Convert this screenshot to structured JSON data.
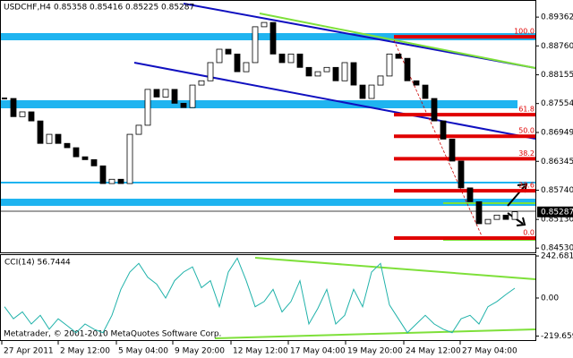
{
  "chart_data": [
    {
      "type": "candlestick",
      "title": "USDCHF,H4",
      "header_values": [
        0.85358,
        0.85416,
        0.85225,
        0.85287
      ],
      "last_price": 0.85287,
      "up_color": "#ffffff",
      "down_color": "#000000",
      "closes": [
        0.8766,
        0.8728,
        0.8738,
        0.8719,
        0.8672,
        0.8691,
        0.8672,
        0.8663,
        0.8644,
        0.8638,
        0.8625,
        0.8588,
        0.8597,
        0.8588,
        0.8691,
        0.871,
        0.8785,
        0.8769,
        0.8785,
        0.8756,
        0.8747,
        0.8794,
        0.8803,
        0.8841,
        0.8869,
        0.8859,
        0.8822,
        0.8841,
        0.8916,
        0.8925,
        0.8859,
        0.8841,
        0.8859,
        0.8831,
        0.8813,
        0.8822,
        0.8831,
        0.8803,
        0.8841,
        0.8794,
        0.8766,
        0.8794,
        0.8813,
        0.8859,
        0.885,
        0.8803,
        0.8794,
        0.8766,
        0.8719,
        0.8681,
        0.8635,
        0.8579,
        0.855,
        0.8504,
        0.8513,
        0.8522,
        0.8513,
        0.8529
      ],
      "xlim": [
        -0.5,
        59.3
      ],
      "ylim": [
        0.8444,
        0.8972
      ],
      "yticks": [
        {
          "value": 0.89362,
          "label": "0.89362"
        },
        {
          "value": 0.8876,
          "label": "0.88760"
        },
        {
          "value": 0.88155,
          "label": "0.88155"
        },
        {
          "value": 0.87554,
          "label": "0.87554"
        },
        {
          "value": 0.86949,
          "label": "0.86949"
        },
        {
          "value": 0.86345,
          "label": "0.86345"
        },
        {
          "value": 0.8574,
          "label": "0.85740"
        },
        {
          "value": 0.8513,
          "label": "0.85130"
        },
        {
          "value": 0.8453,
          "label": "0.84530"
        }
      ],
      "xticks": [
        {
          "value": -0.3,
          "label": "27 Apr 2011"
        },
        {
          "value": 6,
          "label": "2 May 12:00"
        },
        {
          "value": 12.5,
          "label": "5 May 04:00"
        },
        {
          "value": 18.8,
          "label": "9 May 20:00"
        },
        {
          "value": 25.3,
          "label": "12 May 12:00"
        },
        {
          "value": 31.7,
          "label": "17 May 04:00"
        },
        {
          "value": 38.1,
          "label": "19 May 20:00"
        },
        {
          "value": 44.6,
          "label": "24 May 12:00"
        },
        {
          "value": 50.9,
          "label": "27 May 04:00"
        }
      ],
      "fib_levels": [
        {
          "value": 0.8895,
          "label": "100.0"
        },
        {
          "value": 0.8732,
          "label": "61.8"
        },
        {
          "value": 0.8687,
          "label": "50.0"
        },
        {
          "value": 0.864,
          "label": "38.2"
        },
        {
          "value": 0.8573,
          "label": "23.6"
        },
        {
          "value": 0.8474,
          "label": "0.0"
        }
      ]
    },
    {
      "type": "line",
      "title": "CCI(14) 56.7444",
      "color": "#20b2aa",
      "values": [
        -50,
        -120,
        -80,
        -150,
        -100,
        -180,
        -120,
        -160,
        -200,
        -150,
        -180,
        -200,
        -100,
        50,
        150,
        200,
        120,
        80,
        0,
        100,
        150,
        180,
        60,
        100,
        -50,
        150,
        230,
        100,
        -50,
        -20,
        50,
        -80,
        -20,
        100,
        -150,
        -60,
        50,
        -150,
        -100,
        50,
        -50,
        150,
        200,
        -40,
        -120,
        -200,
        -150,
        -100,
        -150,
        -180,
        -200,
        -120,
        -100,
        -150,
        -50,
        -20,
        20,
        57
      ],
      "ylim": [
        -243,
        248
      ],
      "yticks": [
        242.6814,
        {
          "value": 0,
          "label": "0.00"
        },
        -219.659
      ],
      "footer": "Metatrader, © 2001-2010 MetaQuotes Software Corp."
    }
  ]
}
